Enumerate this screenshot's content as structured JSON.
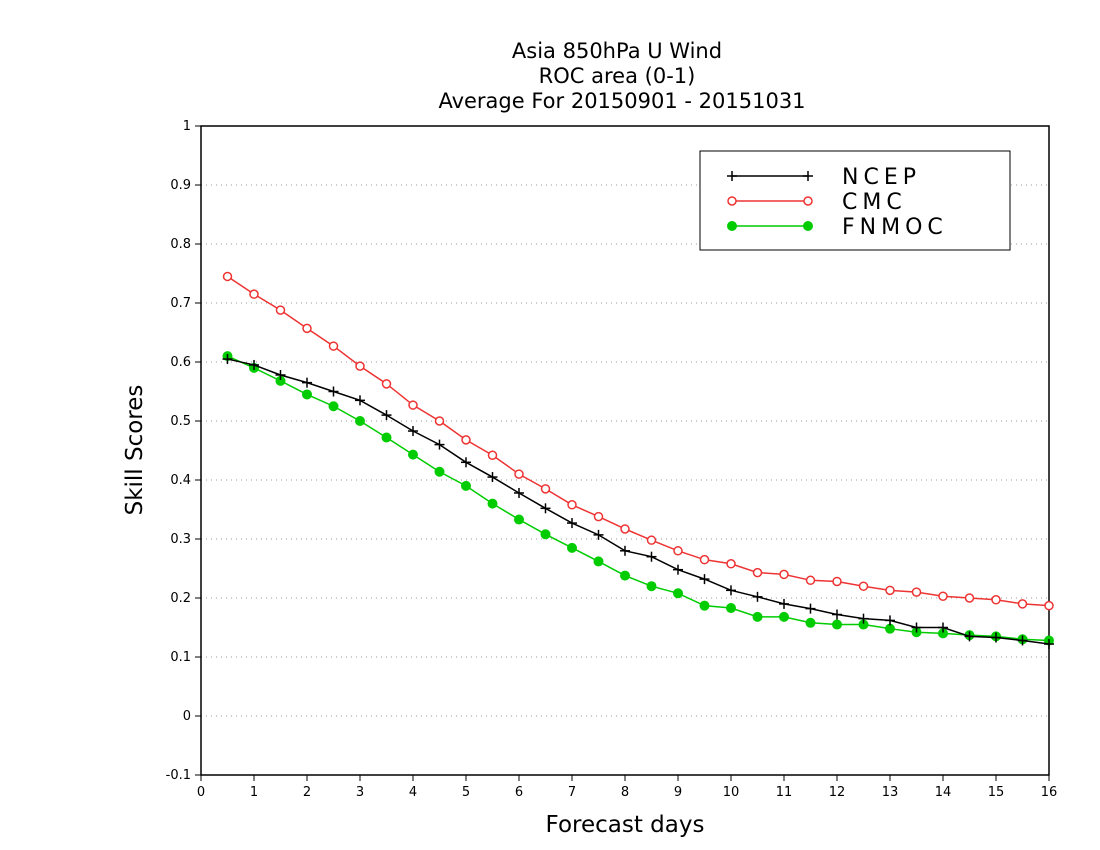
{
  "chart_data": {
    "type": "line",
    "title": [
      "Asia 850hPa U Wind",
      "ROC area (0-1)",
      "Average For 20150901 - 20151031"
    ],
    "xlabel": "Forecast days",
    "ylabel": "Skill Scores",
    "xlim": [
      0,
      16
    ],
    "ylim": [
      -0.1,
      1
    ],
    "xticks": [
      "0",
      "1",
      "2",
      "3",
      "4",
      "5",
      "6",
      "7",
      "8",
      "9",
      "10",
      "11",
      "12",
      "13",
      "14",
      "15",
      "16"
    ],
    "yticks": [
      "-0.1",
      "0",
      "0.1",
      "0.2",
      "0.3",
      "0.4",
      "0.5",
      "0.6",
      "0.7",
      "0.8",
      "0.9",
      "1"
    ],
    "grid": "horizontal dotted",
    "legend_position": "top-right",
    "x": [
      0.5,
      1,
      1.5,
      2,
      2.5,
      3,
      3.5,
      4,
      4.5,
      5,
      5.5,
      6,
      6.5,
      7,
      7.5,
      8,
      8.5,
      9,
      9.5,
      10,
      10.5,
      11,
      11.5,
      12,
      12.5,
      13,
      13.5,
      14,
      14.5,
      15,
      15.5,
      16
    ],
    "series": [
      {
        "name": "NCEP",
        "color": "#000000",
        "marker": "plus",
        "values": [
          0.605,
          0.595,
          0.578,
          0.565,
          0.55,
          0.535,
          0.51,
          0.483,
          0.46,
          0.43,
          0.405,
          0.378,
          0.352,
          0.327,
          0.307,
          0.28,
          0.27,
          0.248,
          0.232,
          0.213,
          0.202,
          0.19,
          0.182,
          0.172,
          0.165,
          0.162,
          0.15,
          0.15,
          0.135,
          0.133,
          0.128,
          0.122
        ]
      },
      {
        "name": "CMC",
        "color": "#ee3333",
        "marker": "open-circle",
        "values": [
          0.745,
          0.715,
          0.688,
          0.657,
          0.627,
          0.593,
          0.563,
          0.527,
          0.5,
          0.468,
          0.442,
          0.41,
          0.385,
          0.358,
          0.338,
          0.317,
          0.298,
          0.28,
          0.265,
          0.258,
          0.243,
          0.24,
          0.23,
          0.228,
          0.22,
          0.213,
          0.21,
          0.203,
          0.2,
          0.197,
          0.19,
          0.187
        ]
      },
      {
        "name": "FNMOC",
        "color": "#00cc00",
        "marker": "filled-circle",
        "values": [
          0.61,
          0.59,
          0.568,
          0.545,
          0.525,
          0.5,
          0.472,
          0.443,
          0.414,
          0.39,
          0.36,
          0.333,
          0.308,
          0.285,
          0.262,
          0.238,
          0.22,
          0.208,
          0.187,
          0.183,
          0.168,
          0.168,
          0.158,
          0.155,
          0.155,
          0.148,
          0.142,
          0.14,
          0.137,
          0.135,
          0.13,
          0.128
        ]
      }
    ]
  }
}
